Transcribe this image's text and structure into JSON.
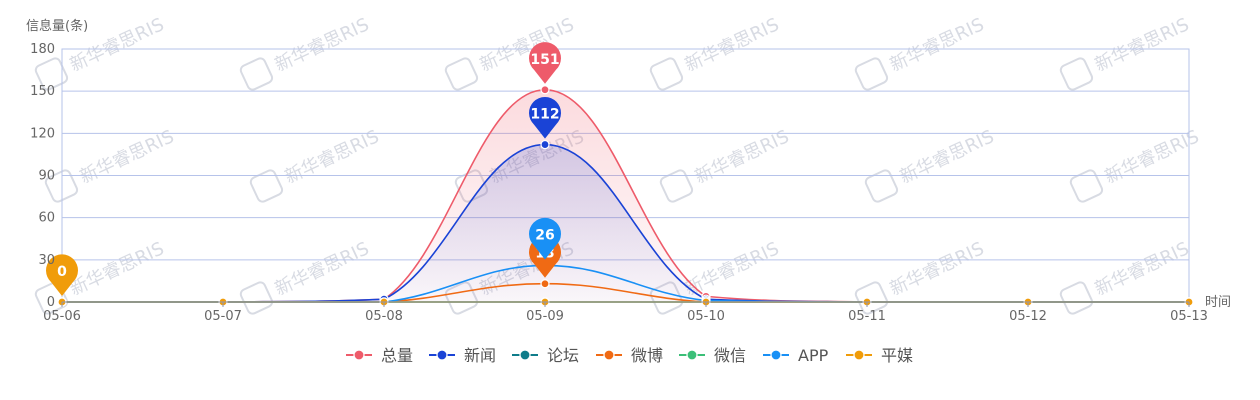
{
  "chart_data": {
    "type": "line",
    "title": "",
    "ylabel": "信息量(条)",
    "xlabel": "时间",
    "categories": [
      "05-06",
      "05-07",
      "05-08",
      "05-09",
      "05-10",
      "05-11",
      "05-12",
      "05-13"
    ],
    "y_ticks": [
      "0",
      "30",
      "60",
      "90",
      "120",
      "150",
      "180"
    ],
    "ylim": [
      0,
      180
    ],
    "grid": true,
    "legend_position": "bottom",
    "series": [
      {
        "name": "总量",
        "color": "#ee5b6a",
        "values": [
          0,
          0,
          2,
          151,
          4,
          0,
          0,
          0
        ],
        "pin_index": 3,
        "area": true
      },
      {
        "name": "新闻",
        "color": "#1a43d6",
        "values": [
          0,
          0,
          2,
          112,
          2,
          0,
          0,
          0
        ],
        "pin_index": 3,
        "area": true
      },
      {
        "name": "论坛",
        "color": "#0f7c8a",
        "values": [
          0,
          0,
          0,
          0,
          0,
          0,
          0,
          0
        ]
      },
      {
        "name": "微博",
        "color": "#f06a14",
        "values": [
          0,
          0,
          0,
          13,
          0,
          0,
          0,
          0
        ],
        "pin_index": 3
      },
      {
        "name": "微信",
        "color": "#3bbf78",
        "values": [
          0,
          0,
          0,
          0,
          0,
          0,
          0,
          0
        ]
      },
      {
        "name": "APP",
        "color": "#1990f5",
        "values": [
          0,
          0,
          0,
          26,
          1,
          0,
          0,
          0
        ],
        "pin_index": 3
      },
      {
        "name": "平媒",
        "color": "#f09c0a",
        "values": [
          0,
          0,
          0,
          0,
          0,
          0,
          0,
          0
        ],
        "pin_index": 0
      }
    ],
    "watermark": "新华睿思RIS"
  }
}
